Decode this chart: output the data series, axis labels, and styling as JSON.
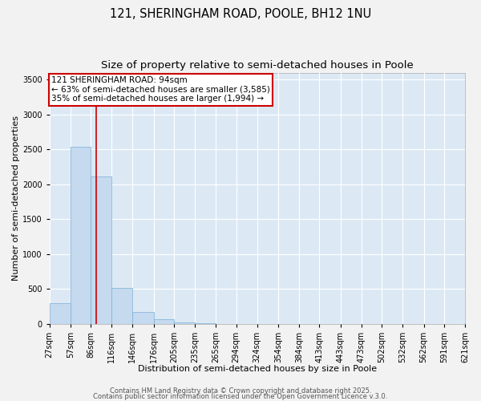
{
  "title_line1": "121, SHERINGHAM ROAD, POOLE, BH12 1NU",
  "title_line2": "Size of property relative to semi-detached houses in Poole",
  "xlabel": "Distribution of semi-detached houses by size in Poole",
  "ylabel": "Number of semi-detached properties",
  "bar_color": "#c5d9ef",
  "bar_edge_color": "#7bafd4",
  "bg_color": "#dce9f5",
  "grid_color": "#ffffff",
  "annotation_box_color": "#cc0000",
  "vline_color": "#cc0000",
  "annotation_line1": "121 SHERINGHAM ROAD: 94sqm",
  "annotation_line2": "← 63% of semi-detached houses are smaller (3,585)",
  "annotation_line3": "35% of semi-detached houses are larger (1,994) →",
  "property_size": 94,
  "bin_edges": [
    27,
    57,
    86,
    116,
    146,
    176,
    205,
    235,
    265,
    294,
    324,
    354,
    384,
    413,
    443,
    473,
    502,
    532,
    562,
    591,
    621
  ],
  "bin_labels": [
    "27sqm",
    "57sqm",
    "86sqm",
    "116sqm",
    "146sqm",
    "176sqm",
    "205sqm",
    "235sqm",
    "265sqm",
    "294sqm",
    "324sqm",
    "354sqm",
    "384sqm",
    "413sqm",
    "443sqm",
    "473sqm",
    "502sqm",
    "532sqm",
    "562sqm",
    "591sqm",
    "621sqm"
  ],
  "bar_heights": [
    300,
    2540,
    2110,
    510,
    170,
    70,
    20,
    5,
    2,
    1,
    0,
    0,
    0,
    0,
    0,
    0,
    0,
    0,
    0,
    0
  ],
  "ylim": [
    0,
    3600
  ],
  "yticks": [
    0,
    500,
    1000,
    1500,
    2000,
    2500,
    3000,
    3500
  ],
  "footer_line1": "Contains HM Land Registry data © Crown copyright and database right 2025.",
  "footer_line2": "Contains public sector information licensed under the Open Government Licence v.3.0.",
  "title_fontsize": 10.5,
  "subtitle_fontsize": 9.5,
  "axis_label_fontsize": 8,
  "tick_fontsize": 7,
  "annotation_fontsize": 7.5,
  "footer_fontsize": 6,
  "fig_bg_color": "#f2f2f2"
}
